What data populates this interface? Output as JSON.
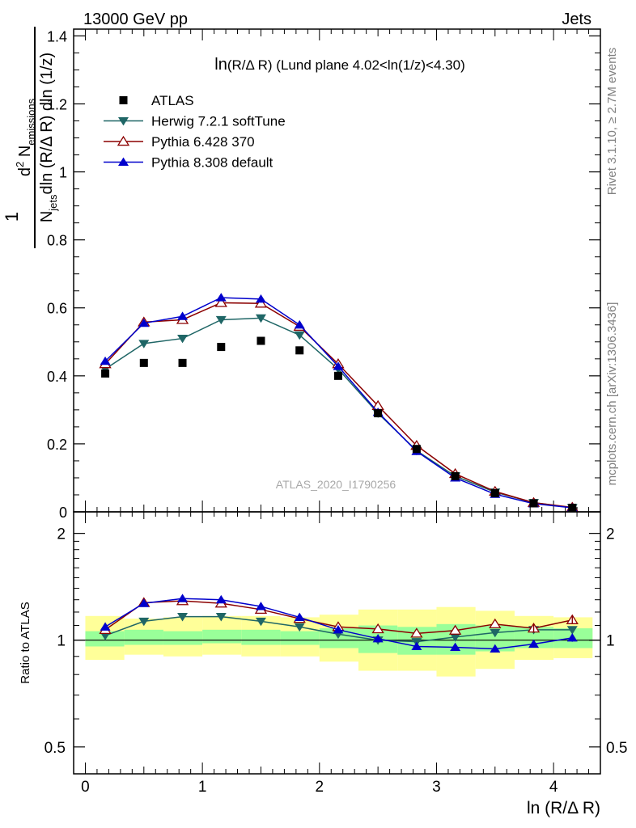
{
  "header": {
    "left": "13000 GeV pp",
    "right": "Jets"
  },
  "side_labels": {
    "rivet": "Rivet 3.1.10, ≥ 2.7M events",
    "mcplots": "mcplots.cern.ch [arXiv:1306.3436]"
  },
  "chart_data": [
    {
      "type": "line",
      "title": "ln(R/Δ R) (Lund plane 4.02<ln(1/z)<4.30)",
      "title_main": "ln",
      "title_rest": "(R/Δ R) (Lund plane 4.02<ln(1/z)<4.30)",
      "ylabel_one": "1",
      "ylabel_den": "N",
      "ylabel_den_sub": "jets",
      "ylabel_den_rest": "dln (R/Δ R) dln (1/z)",
      "ylabel_num_d": "d",
      "ylabel_num_sup": "2",
      "ylabel_num_N": "N",
      "ylabel_num_sub": "emissions",
      "watermark": "ATLAS_2020_I1790256",
      "xlim": [
        -0.1,
        4.4
      ],
      "ylim": [
        0,
        1.42
      ],
      "y_ticks": [
        0,
        0.2,
        0.4,
        0.6,
        0.8,
        1,
        1.2,
        1.4
      ],
      "y_tick_labels": [
        "0",
        "0.2",
        "0.4",
        "0.6",
        "0.8",
        "1",
        "1.2",
        "1.4"
      ],
      "legend_position": "top-left",
      "x": [
        0.17,
        0.5,
        0.83,
        1.16,
        1.5,
        1.83,
        2.16,
        2.5,
        2.83,
        3.16,
        3.5,
        3.83,
        4.16
      ],
      "series": [
        {
          "name": "ATLAS",
          "color": "#000000",
          "marker": "square",
          "line": false,
          "values": [
            0.407,
            0.438,
            0.438,
            0.485,
            0.503,
            0.475,
            0.4,
            0.29,
            0.185,
            0.105,
            0.055,
            0.025,
            0.012
          ]
        },
        {
          "name": "Herwig 7.2.1 softTune",
          "color": "#1f6666",
          "marker": "triangle-down",
          "line": true,
          "values": [
            0.42,
            0.495,
            0.51,
            0.565,
            0.57,
            0.52,
            0.42,
            0.29,
            0.18,
            0.105,
            0.058,
            0.027,
            0.012
          ]
        },
        {
          "name": "Pythia 6.428 370",
          "color": "#8b0000",
          "marker": "triangle-open",
          "line": true,
          "values": [
            0.435,
            0.558,
            0.565,
            0.615,
            0.613,
            0.545,
            0.435,
            0.312,
            0.195,
            0.112,
            0.06,
            0.027,
            0.013
          ]
        },
        {
          "name": "Pythia 8.308 default",
          "color": "#0000cc",
          "marker": "triangle-up",
          "line": true,
          "values": [
            0.443,
            0.555,
            0.575,
            0.63,
            0.626,
            0.55,
            0.428,
            0.293,
            0.178,
            0.1,
            0.052,
            0.024,
            0.012
          ]
        }
      ]
    },
    {
      "type": "line",
      "ylabel": "Ratio to ATLAS",
      "xlabel": "ln (R/Δ R)",
      "xlim": [
        -0.1,
        4.4
      ],
      "ylim": [
        0.42,
        2.3
      ],
      "y_scale": "log",
      "y_ticks": [
        0.5,
        1,
        2
      ],
      "y_tick_labels": [
        "0.5",
        "1",
        "2"
      ],
      "x_ticks": [
        0,
        1,
        2,
        3,
        4
      ],
      "x_tick_labels": [
        "0",
        "1",
        "2",
        "3",
        "4"
      ],
      "bin_edges": [
        0,
        0.333,
        0.667,
        1,
        1.333,
        1.667,
        2,
        2.333,
        2.667,
        3,
        3.333,
        3.667,
        4,
        4.333
      ],
      "band_inner": [
        [
          0.96,
          1.06
        ],
        [
          0.97,
          1.07
        ],
        [
          0.97,
          1.06
        ],
        [
          0.98,
          1.07
        ],
        [
          0.97,
          1.07
        ],
        [
          0.97,
          1.06
        ],
        [
          0.95,
          1.08
        ],
        [
          0.92,
          1.1
        ],
        [
          0.91,
          1.09
        ],
        [
          0.91,
          1.11
        ],
        [
          0.93,
          1.1
        ],
        [
          0.95,
          1.09
        ],
        [
          0.95,
          1.08
        ]
      ],
      "band_outer": [
        [
          0.88,
          1.17
        ],
        [
          0.91,
          1.15
        ],
        [
          0.9,
          1.16
        ],
        [
          0.91,
          1.17
        ],
        [
          0.9,
          1.17
        ],
        [
          0.9,
          1.16
        ],
        [
          0.87,
          1.18
        ],
        [
          0.82,
          1.22
        ],
        [
          0.82,
          1.22
        ],
        [
          0.79,
          1.24
        ],
        [
          0.83,
          1.21
        ],
        [
          0.88,
          1.17
        ],
        [
          0.89,
          1.16
        ]
      ],
      "series": [
        {
          "name": "Herwig 7.2.1 softTune",
          "color": "#1f6666",
          "marker": "triangle-down",
          "values": [
            1.03,
            1.13,
            1.165,
            1.165,
            1.13,
            1.09,
            1.04,
            1.0,
            0.99,
            1.02,
            1.05,
            1.07,
            1.07
          ]
        },
        {
          "name": "Pythia 6.428 370",
          "color": "#8b0000",
          "marker": "triangle-open",
          "values": [
            1.07,
            1.275,
            1.29,
            1.27,
            1.22,
            1.15,
            1.09,
            1.075,
            1.045,
            1.065,
            1.11,
            1.08,
            1.14
          ]
        },
        {
          "name": "Pythia 8.308 default",
          "color": "#0000cc",
          "marker": "triangle-up",
          "values": [
            1.09,
            1.27,
            1.31,
            1.3,
            1.245,
            1.16,
            1.07,
            1.01,
            0.96,
            0.955,
            0.945,
            0.975,
            1.015
          ]
        }
      ],
      "error_bars": [
        {
          "series": 1,
          "point": 11,
          "low": 1.05,
          "high": 1.11
        },
        {
          "series": 1,
          "point": 12,
          "low": 1.11,
          "high": 1.17
        },
        {
          "series": 2,
          "point": 12,
          "low": 0.99,
          "high": 1.04
        }
      ]
    }
  ]
}
